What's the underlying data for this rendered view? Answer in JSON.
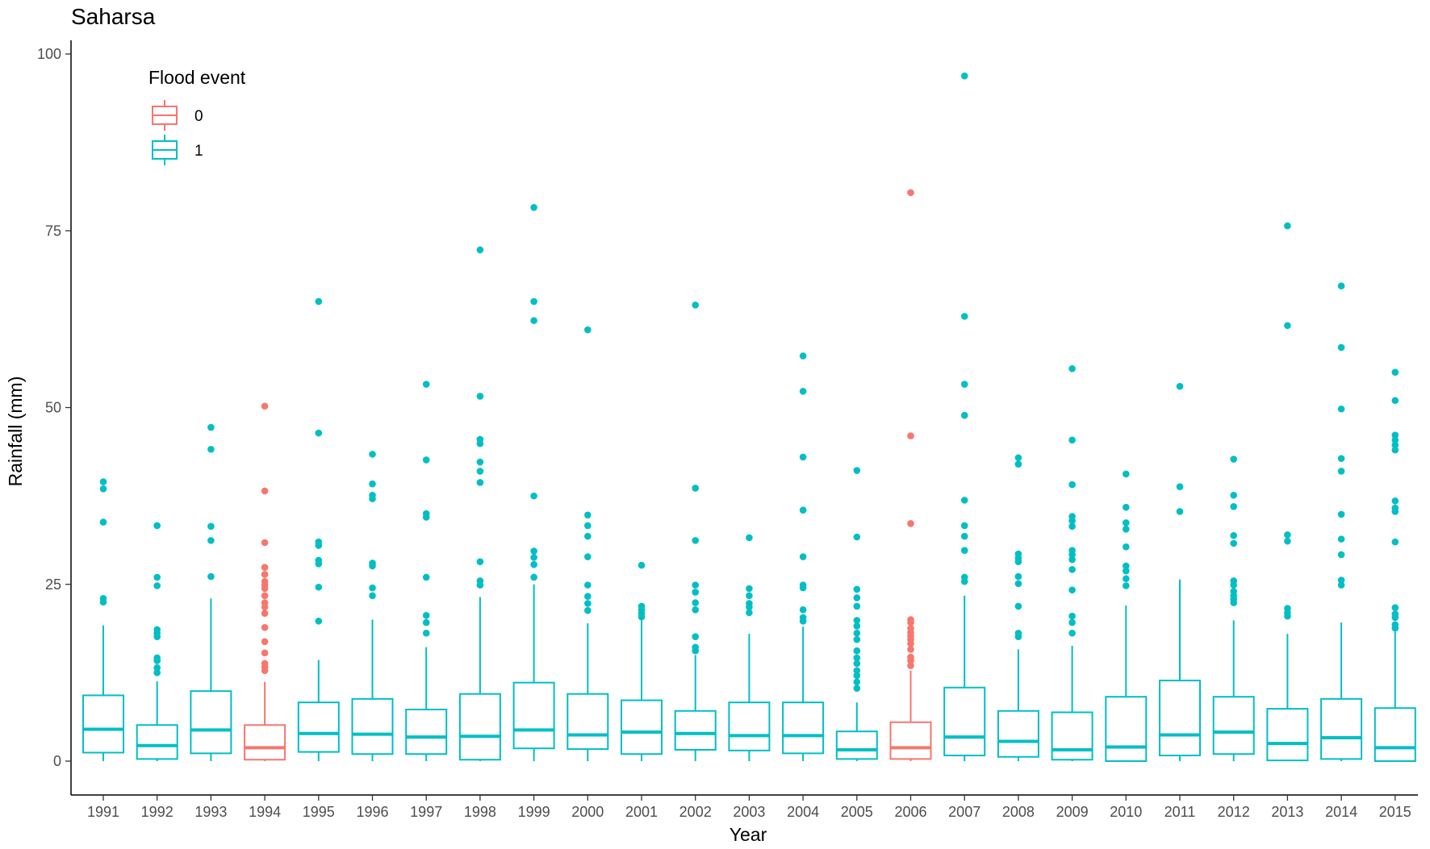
{
  "chart_data": {
    "type": "boxplot",
    "title": "Saharsa",
    "xlabel": "Year",
    "ylabel": "Rainfall (mm)",
    "ylim": [
      -5,
      102
    ],
    "yticks": [
      0,
      25,
      50,
      75,
      100
    ],
    "grid": false,
    "legend": {
      "title": "Flood event",
      "placement": "top-left",
      "entries": [
        {
          "label": "0",
          "color": "#F8766D"
        },
        {
          "label": "1",
          "color": "#00BFC4"
        }
      ]
    },
    "categories": [
      "1991",
      "1992",
      "1993",
      "1994",
      "1995",
      "1996",
      "1997",
      "1998",
      "1999",
      "2000",
      "2001",
      "2002",
      "2003",
      "2004",
      "2005",
      "2006",
      "2007",
      "2008",
      "2009",
      "2010",
      "2011",
      "2012",
      "2013",
      "2014",
      "2015"
    ],
    "boxes": [
      {
        "year": "1991",
        "flood": "1",
        "whisker_low": 0,
        "q1": 1.2,
        "median": 4.5,
        "q3": 9.3,
        "whisker_high": 19.2,
        "outliers": [
          22.5,
          23,
          33.8,
          38.5,
          39.5
        ]
      },
      {
        "year": "1992",
        "flood": "1",
        "whisker_low": 0,
        "q1": 0.3,
        "median": 2.2,
        "q3": 5.1,
        "whisker_high": 11.3,
        "outliers": [
          12.5,
          13.2,
          14.2,
          14.6,
          17.6,
          18.1,
          18.6,
          24.8,
          26,
          33.3
        ]
      },
      {
        "year": "1993",
        "flood": "1",
        "whisker_low": 0,
        "q1": 1.1,
        "median": 4.4,
        "q3": 9.9,
        "whisker_high": 23,
        "outliers": [
          26.1,
          31.2,
          33.2,
          44.1,
          47.2
        ]
      },
      {
        "year": "1994",
        "flood": "0",
        "whisker_low": 0,
        "q1": 0.2,
        "median": 1.9,
        "q3": 5.1,
        "whisker_high": 11.2,
        "outliers": [
          12.8,
          13.3,
          13.8,
          15.3,
          16.9,
          18.9,
          20.9,
          21.8,
          22.4,
          23.4,
          24.4,
          24.9,
          25.4,
          26.4,
          27.4,
          30.9,
          38.2,
          50.2
        ]
      },
      {
        "year": "1995",
        "flood": "1",
        "whisker_low": 0,
        "q1": 1.3,
        "median": 3.9,
        "q3": 8.3,
        "whisker_high": 14.3,
        "outliers": [
          19.8,
          24.6,
          27.9,
          28.4,
          30.5,
          31,
          46.4,
          65
        ]
      },
      {
        "year": "1996",
        "flood": "1",
        "whisker_low": 0,
        "q1": 1,
        "median": 3.8,
        "q3": 8.8,
        "whisker_high": 20,
        "outliers": [
          23.4,
          24.5,
          27.6,
          28,
          37.1,
          37.6,
          39.2,
          43.4
        ]
      },
      {
        "year": "1997",
        "flood": "1",
        "whisker_low": 0,
        "q1": 1,
        "median": 3.4,
        "q3": 7.3,
        "whisker_high": 16.1,
        "outliers": [
          18.1,
          19.6,
          20.6,
          26,
          34.5,
          35,
          42.6,
          53.3
        ]
      },
      {
        "year": "1998",
        "flood": "1",
        "whisker_low": 0,
        "q1": 0.2,
        "median": 3.5,
        "q3": 9.5,
        "whisker_high": 23.2,
        "outliers": [
          24.9,
          25.5,
          28.2,
          39.4,
          41,
          42.3,
          44.9,
          45.5,
          51.6,
          72.3
        ]
      },
      {
        "year": "1999",
        "flood": "1",
        "whisker_low": 0,
        "q1": 1.8,
        "median": 4.4,
        "q3": 11.1,
        "whisker_high": 25,
        "outliers": [
          26,
          27.8,
          28.8,
          29.7,
          37.5,
          62.3,
          65,
          78.3
        ]
      },
      {
        "year": "2000",
        "flood": "1",
        "whisker_low": 0,
        "q1": 1.7,
        "median": 3.7,
        "q3": 9.5,
        "whisker_high": 19.5,
        "outliers": [
          21.3,
          22.3,
          23.3,
          24.9,
          28.9,
          31.8,
          33.3,
          34.8,
          61
        ]
      },
      {
        "year": "2001",
        "flood": "1",
        "whisker_low": 0,
        "q1": 1,
        "median": 4.1,
        "q3": 8.6,
        "whisker_high": 20,
        "outliers": [
          20.4,
          20.9,
          21.4,
          21.9,
          27.7
        ]
      },
      {
        "year": "2002",
        "flood": "1",
        "whisker_low": 0,
        "q1": 1.6,
        "median": 3.9,
        "q3": 7.1,
        "whisker_high": 15,
        "outliers": [
          15.6,
          16.1,
          17.6,
          21.4,
          22.4,
          23.9,
          24.9,
          31.2,
          38.6,
          64.5
        ]
      },
      {
        "year": "2003",
        "flood": "1",
        "whisker_low": 0,
        "q1": 1.5,
        "median": 3.6,
        "q3": 8.3,
        "whisker_high": 18,
        "outliers": [
          21,
          21.8,
          22.3,
          23.4,
          24.4,
          31.6
        ]
      },
      {
        "year": "2004",
        "flood": "1",
        "whisker_low": 0,
        "q1": 1.1,
        "median": 3.6,
        "q3": 8.3,
        "whisker_high": 19,
        "outliers": [
          19.8,
          20.3,
          21.4,
          24.5,
          24.9,
          28.9,
          35.5,
          43,
          52.3,
          57.3
        ]
      },
      {
        "year": "2005",
        "flood": "1",
        "whisker_low": 0,
        "q1": 0.3,
        "median": 1.6,
        "q3": 4.2,
        "whisker_high": 8.3,
        "outliers": [
          10.3,
          11.2,
          12.1,
          12.8,
          13.8,
          14.6,
          15.6,
          17.2,
          18.1,
          19.1,
          19.9,
          21.9,
          23.1,
          24.3,
          31.7,
          41.1
        ]
      },
      {
        "year": "2006",
        "flood": "0",
        "whisker_low": 0,
        "q1": 0.3,
        "median": 1.9,
        "q3": 5.5,
        "whisker_high": 12.8,
        "outliers": [
          13.5,
          14.2,
          14.7,
          15.8,
          16.6,
          17.2,
          17.7,
          18.2,
          18.8,
          19.6,
          20,
          33.6,
          46,
          80.4
        ]
      },
      {
        "year": "2007",
        "flood": "1",
        "whisker_low": 0,
        "q1": 0.8,
        "median": 3.4,
        "q3": 10.4,
        "whisker_high": 23.4,
        "outliers": [
          25.4,
          26,
          29.8,
          31.8,
          33.3,
          36.9,
          48.9,
          53.3,
          62.9,
          96.9
        ]
      },
      {
        "year": "2008",
        "flood": "1",
        "whisker_low": 0,
        "q1": 0.6,
        "median": 2.8,
        "q3": 7.1,
        "whisker_high": 15.8,
        "outliers": [
          17.6,
          18.1,
          21.9,
          25.1,
          26.1,
          28.2,
          28.7,
          29.3,
          42,
          42.9
        ]
      },
      {
        "year": "2009",
        "flood": "1",
        "whisker_low": 0,
        "q1": 0.2,
        "median": 1.6,
        "q3": 6.9,
        "whisker_high": 16.3,
        "outliers": [
          18.1,
          19.6,
          20.5,
          24.2,
          27.1,
          28.5,
          29.2,
          29.8,
          33.2,
          34,
          34.6,
          39.1,
          45.4,
          55.5
        ]
      },
      {
        "year": "2010",
        "flood": "1",
        "whisker_low": 0,
        "q1": 0,
        "median": 2,
        "q3": 9.1,
        "whisker_high": 22,
        "outliers": [
          24.8,
          25.8,
          26.9,
          27.6,
          30.3,
          32.8,
          33.7,
          35.9,
          40.6
        ]
      },
      {
        "year": "2011",
        "flood": "1",
        "whisker_low": 0,
        "q1": 0.8,
        "median": 3.7,
        "q3": 11.4,
        "whisker_high": 25.7,
        "outliers": [
          35.3,
          38.8,
          53
        ]
      },
      {
        "year": "2012",
        "flood": "1",
        "whisker_low": 0,
        "q1": 1,
        "median": 4.1,
        "q3": 9.1,
        "whisker_high": 19.9,
        "outliers": [
          22.4,
          22.9,
          23.4,
          24,
          24.9,
          25.5,
          30.8,
          31.9,
          36,
          37.6,
          42.7
        ]
      },
      {
        "year": "2013",
        "flood": "1",
        "whisker_low": 0,
        "q1": 0.1,
        "median": 2.5,
        "q3": 7.4,
        "whisker_high": 18,
        "outliers": [
          20.5,
          21,
          21.6,
          31.1,
          32,
          61.6,
          75.7
        ]
      },
      {
        "year": "2014",
        "flood": "1",
        "whisker_low": 0,
        "q1": 0.3,
        "median": 3.3,
        "q3": 8.8,
        "whisker_high": 19.6,
        "outliers": [
          24.9,
          25.6,
          29.2,
          31.4,
          34.9,
          41,
          42.8,
          49.8,
          58.5,
          67.2
        ]
      },
      {
        "year": "2015",
        "flood": "1",
        "whisker_low": 0,
        "q1": 0,
        "median": 1.9,
        "q3": 7.5,
        "whisker_high": 18.3,
        "outliers": [
          18.8,
          19.3,
          20.3,
          20.8,
          21.7,
          31,
          35.3,
          35.8,
          36.8,
          44,
          44.7,
          45.4,
          46.1,
          51,
          55
        ]
      }
    ]
  }
}
